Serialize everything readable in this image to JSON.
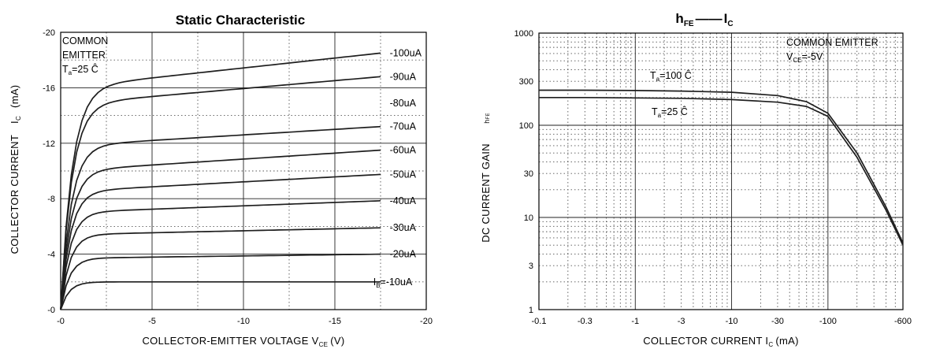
{
  "chart_data": [
    {
      "type": "line",
      "title": "Static Characteristic",
      "xlabel": "COLLECTOR-EMITTER VOLTAGE V",
      "xlabel_sub": "CE",
      "xlabel_unit": "(V)",
      "ylabel": "COLLECTOR CURRENT",
      "ylabel_symbol": "I",
      "ylabel_symbol_sub": "C",
      "ylabel_unit": "(mA)",
      "xlim": [
        0,
        -20
      ],
      "ylim": [
        0,
        -20
      ],
      "x_ticks": [
        "-0",
        "-5",
        "-10",
        "-15",
        "-20"
      ],
      "y_ticks": [
        "-0",
        "-4",
        "-8",
        "-12",
        "-16",
        "-20"
      ],
      "annotation_lines": [
        "COMMON",
        "EMITTER"
      ],
      "annotation_temp": "T",
      "annotation_temp_sub": "a",
      "annotation_temp_value": "=25 Ĉ",
      "ib_label_prefix": "I",
      "ib_label_prefix_sub": "B",
      "series": [
        {
          "name": "=-10uA",
          "saturation": -2.0,
          "values": [
            [
              -17.5,
              -2.0
            ]
          ]
        },
        {
          "name": "-20uA",
          "saturation": -3.7,
          "values": [
            [
              -17.5,
              -4.0
            ]
          ]
        },
        {
          "name": "-30uA",
          "saturation": -5.4,
          "values": [
            [
              -17.5,
              -5.9
            ]
          ]
        },
        {
          "name": "-40uA",
          "saturation": -7.0,
          "values": [
            [
              -17.5,
              -7.85
            ]
          ]
        },
        {
          "name": "-50uA",
          "saturation": -8.5,
          "values": [
            [
              -17.5,
              -9.75
            ]
          ]
        },
        {
          "name": "-60uA",
          "saturation": -10.0,
          "values": [
            [
              -17.5,
              -11.5
            ]
          ]
        },
        {
          "name": "-70uA",
          "saturation": -11.8,
          "values": [
            [
              -17.5,
              -13.2
            ]
          ]
        },
        {
          "name": "-80uA",
          "saturation": null,
          "values": []
        },
        {
          "name": "-90uA",
          "saturation": -14.8,
          "values": [
            [
              -17.5,
              -16.8
            ]
          ]
        },
        {
          "name": "-100uA",
          "saturation": -16.0,
          "values": [
            [
              -17.5,
              -18.5
            ]
          ]
        }
      ]
    },
    {
      "type": "line",
      "title_main": "h",
      "title_main_sub": "FE",
      "title_sep": "——",
      "title_second": "I",
      "title_second_sub": "C",
      "xlabel": "COLLECTOR CURRENT I",
      "xlabel_sub": "C",
      "xlabel_unit": "(mA)",
      "ylabel": "DC CURRENT GAIN",
      "ylabel_symbol": "h",
      "ylabel_symbol_sub": "FE",
      "x_scale": "log",
      "y_scale": "log",
      "xlim": [
        -0.1,
        -600
      ],
      "ylim": [
        1,
        1000
      ],
      "x_ticks": [
        "-0.1",
        "-0.3",
        "-1",
        "-3",
        "-10",
        "-30",
        "-100",
        "-600"
      ],
      "y_ticks": [
        "1000",
        "300",
        "100",
        "30",
        "10",
        "3",
        "1"
      ],
      "annotation_lines": [
        "COMMON EMITTER"
      ],
      "annotation_vce": "V",
      "annotation_vce_sub": "CE",
      "annotation_vce_value": "=-5V",
      "series": [
        {
          "name": "T",
          "name_sub": "a",
          "name_value": "=100 Ĉ",
          "x": [
            0.1,
            0.3,
            1,
            3,
            10,
            30,
            60,
            100,
            200,
            400,
            600
          ],
          "values": [
            240,
            240,
            238,
            235,
            228,
            210,
            180,
            135,
            50,
            13,
            5.3
          ]
        },
        {
          "name": "T",
          "name_sub": "a",
          "name_value": "=25 Ĉ",
          "x": [
            0.1,
            0.3,
            1,
            3,
            10,
            30,
            60,
            100,
            200,
            400,
            600
          ],
          "values": [
            200,
            200,
            198,
            196,
            190,
            178,
            160,
            125,
            45,
            12,
            5.0
          ]
        }
      ]
    }
  ]
}
